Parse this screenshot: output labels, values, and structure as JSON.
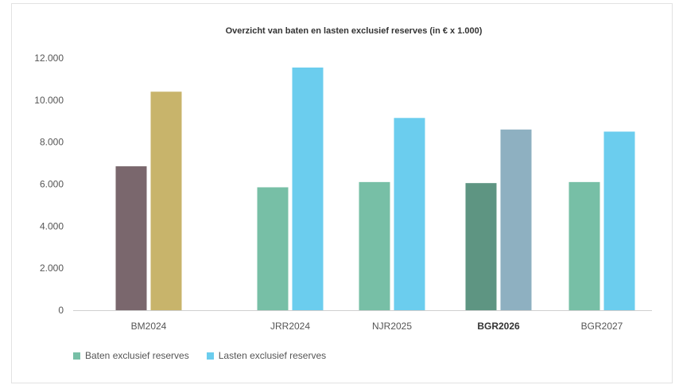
{
  "chart_data": {
    "type": "bar",
    "title": "Overzicht van baten en lasten exclusief reserves (in € x 1.000)",
    "categories": [
      "BM2024",
      "JRR2024",
      "NJR2025",
      "BGR2026",
      "BGR2027"
    ],
    "bold_category": "BGR2026",
    "series": [
      {
        "name": "Baten exclusief reserves",
        "values": [
          6850,
          5850,
          6100,
          6050,
          6100
        ]
      },
      {
        "name": "Lasten exclusief reserves",
        "values": [
          10400,
          11550,
          9150,
          8600,
          8500
        ]
      }
    ],
    "bar_colors": [
      [
        "#7a676d",
        "#c8b46b"
      ],
      [
        "#77bfa6",
        "#6bcdee"
      ],
      [
        "#77bfa6",
        "#6bcdee"
      ],
      [
        "#5e9582",
        "#8eb0c1"
      ],
      [
        "#77bfa6",
        "#6bcdee"
      ]
    ],
    "legend_colors": [
      "#77bfa6",
      "#6bcdee"
    ],
    "yticks": [
      "0",
      "2.000",
      "4.000",
      "6.000",
      "8.000",
      "10.000",
      "12.000"
    ],
    "ylim": [
      0,
      12000
    ],
    "grid": false,
    "legend_position": "bottom-left"
  }
}
